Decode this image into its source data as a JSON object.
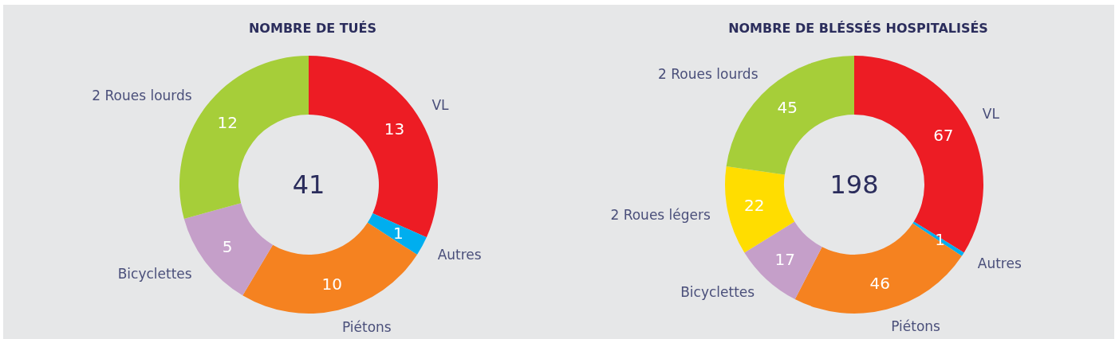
{
  "chart_data": [
    {
      "type": "donut",
      "title": "NOMBRE DE TUÉS",
      "categories": [
        "VL",
        "Autres",
        "Piétons",
        "Bicyclettes",
        "2 Roues lourds"
      ],
      "values": [
        13,
        1,
        10,
        5,
        12
      ],
      "colors": [
        "#ed1c24",
        "#00aeef",
        "#f58220",
        "#c59fc9",
        "#a6ce39"
      ],
      "data_labels": true,
      "annotations": [
        "41"
      ]
    },
    {
      "type": "donut",
      "title": "NOMBRE DE BLÉSSÉS HOSPITALISÉS",
      "categories": [
        "VL",
        "Autres",
        "Piétons",
        "Bicyclettes",
        "2 Roues légers",
        "2 Roues lourds"
      ],
      "values": [
        67,
        1,
        46,
        17,
        22,
        45
      ],
      "colors": [
        "#ed1c24",
        "#00aeef",
        "#f58220",
        "#c59fc9",
        "#ffdd00",
        "#a6ce39"
      ],
      "data_labels": true,
      "annotations": [
        "198"
      ]
    }
  ]
}
